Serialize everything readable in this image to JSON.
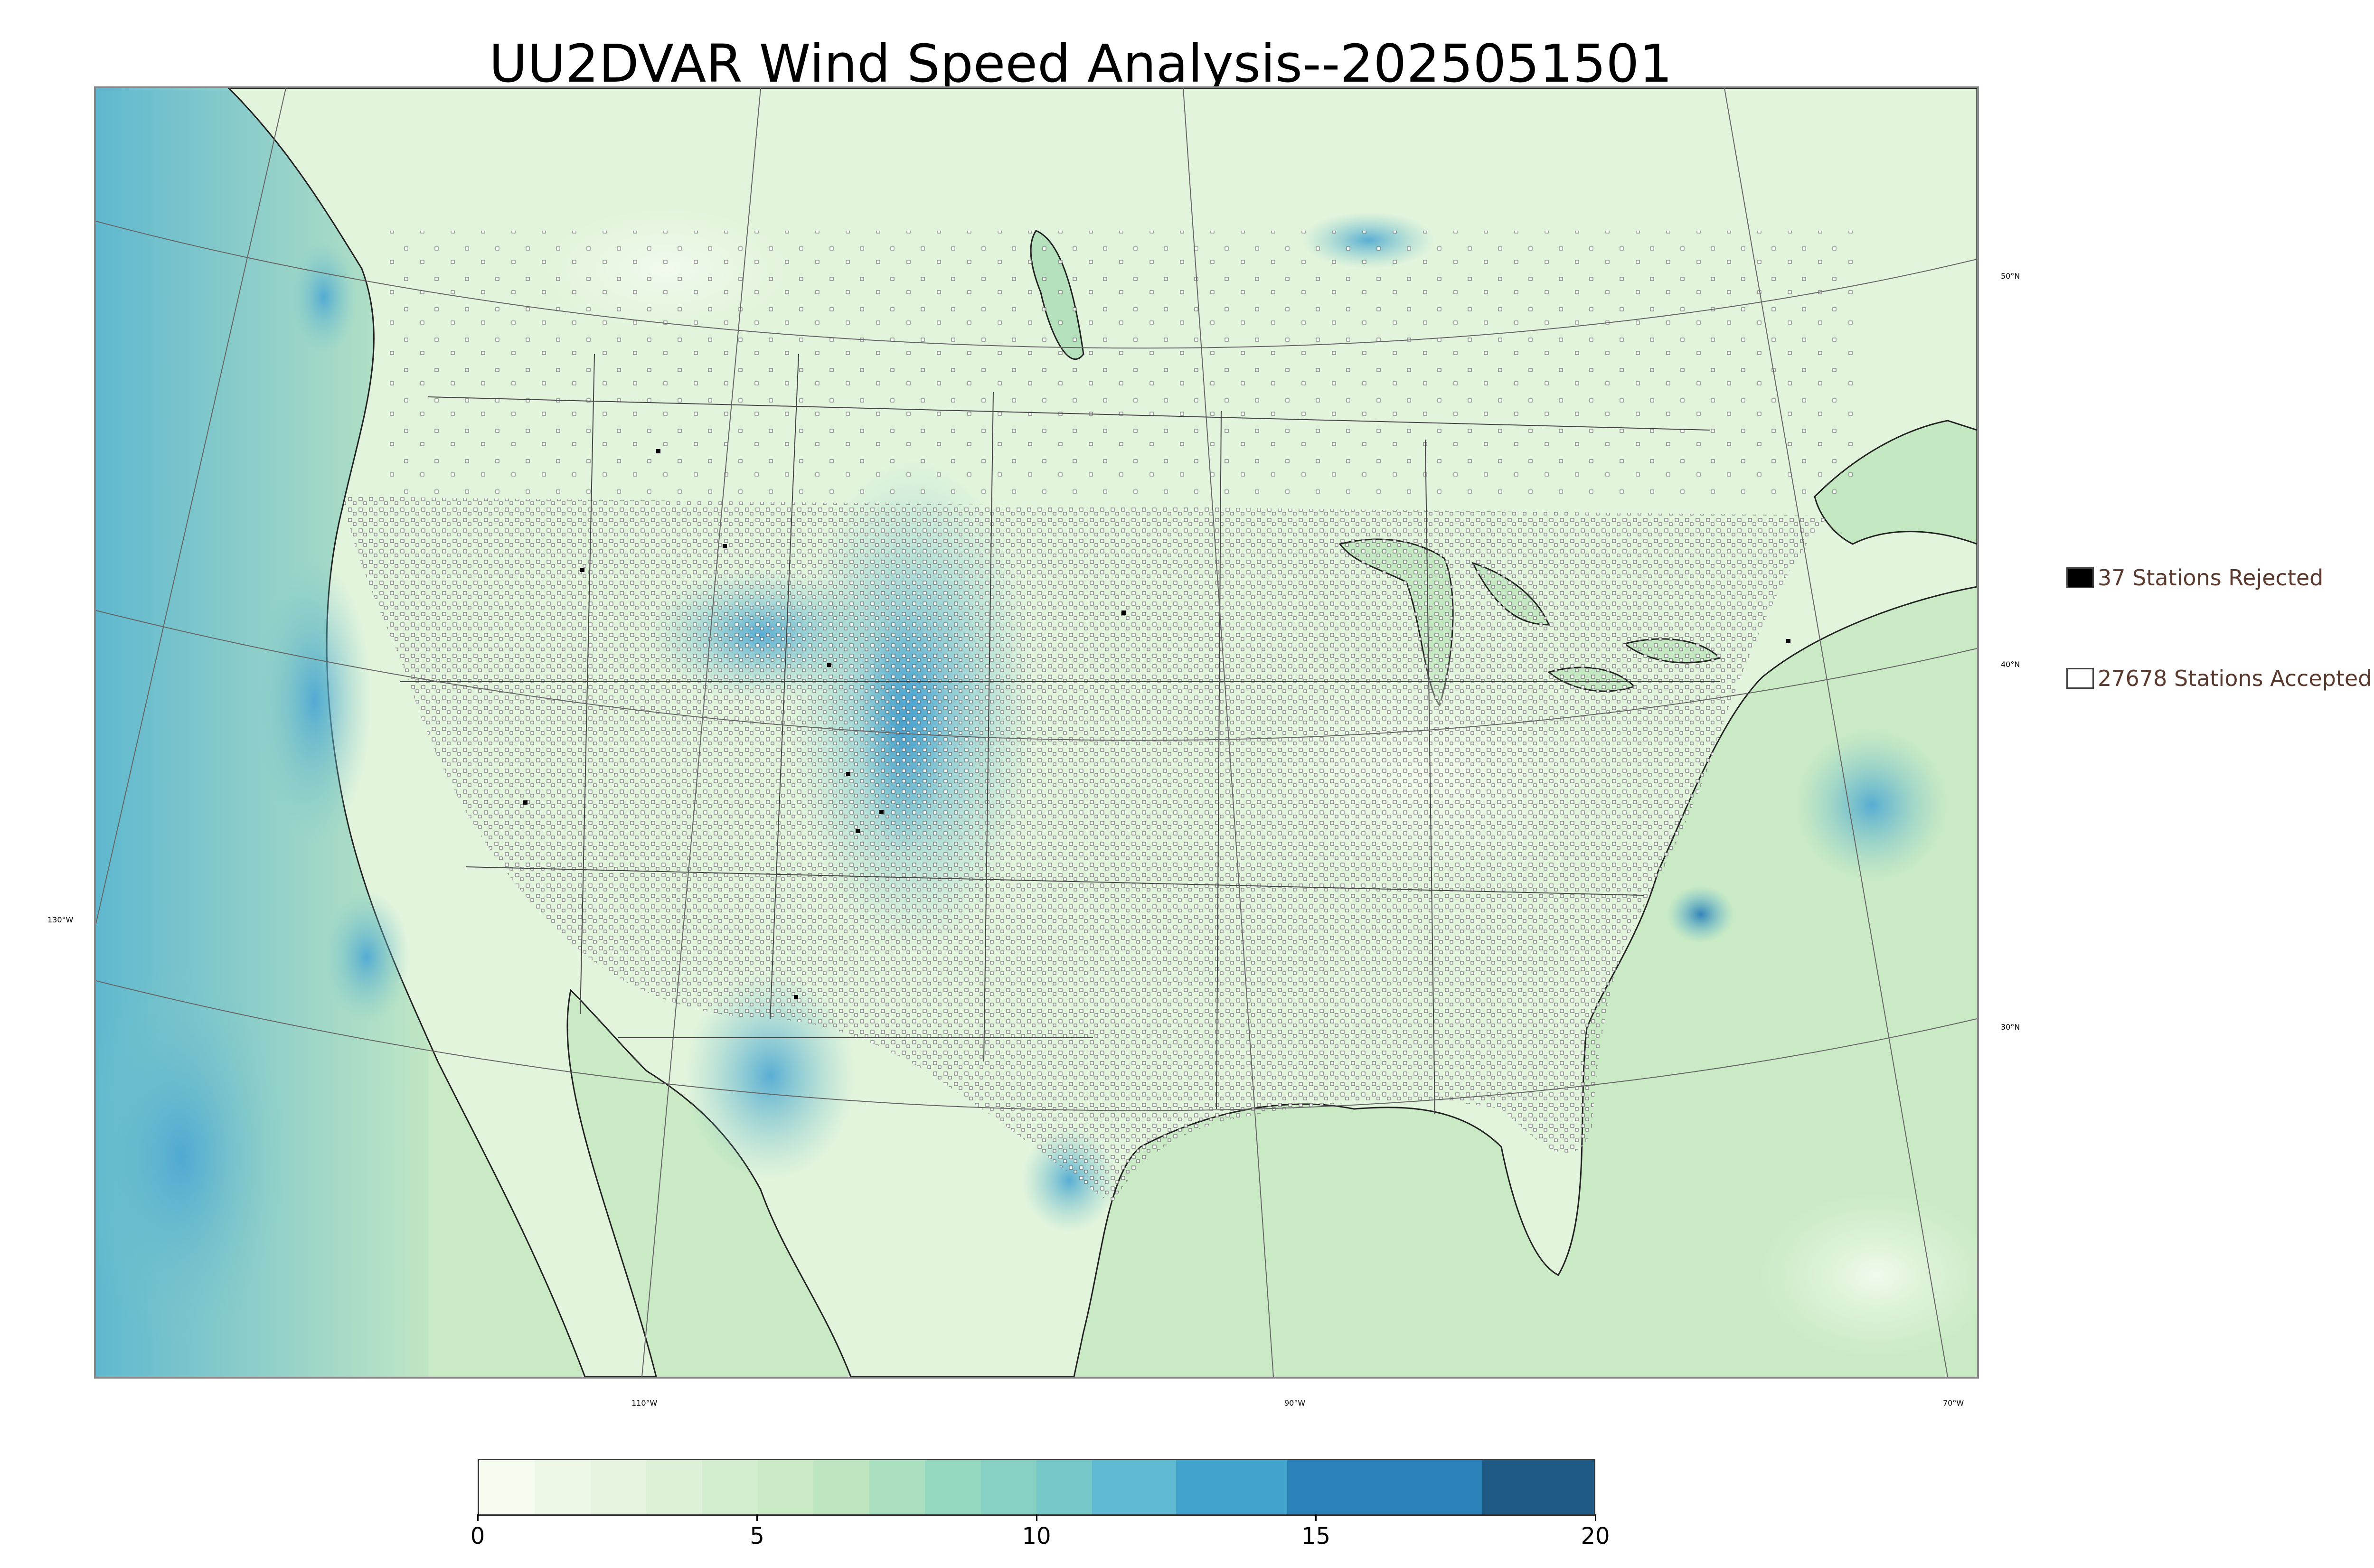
{
  "title": "UU2DVAR Wind Speed Analysis--2025051501",
  "map": {
    "parallel_labels": [
      "50°N",
      "40°N",
      "30°N"
    ],
    "meridian_labels": [
      "130°W",
      "110°W",
      "90°W",
      "70°W"
    ],
    "colors": {
      "water_base": "#c4e8c2",
      "land_base": "#e2f4dc",
      "coast_line": "#222222",
      "border_line": "#444444",
      "graticule_line": "#666666",
      "station_accepted": "#ffffff",
      "station_rejected": "#000000"
    }
  },
  "legend": {
    "rejected_label": "37 Stations Rejected",
    "accepted_label": "27678 Stations Accepted",
    "rejected_color": "#000000",
    "accepted_color": "#ffffff"
  },
  "colorbar": {
    "min": 0,
    "max": 20,
    "ticks": [
      "0",
      "5",
      "10",
      "15",
      "20"
    ],
    "bins": [
      {
        "from": 0,
        "to": 1,
        "color": "#f7fcf0"
      },
      {
        "from": 1,
        "to": 2,
        "color": "#eef8e7"
      },
      {
        "from": 2,
        "to": 3,
        "color": "#e5f5e0"
      },
      {
        "from": 3,
        "to": 4,
        "color": "#dcf1d7"
      },
      {
        "from": 4,
        "to": 5,
        "color": "#d3eece"
      },
      {
        "from": 5,
        "to": 6,
        "color": "#c9eac4"
      },
      {
        "from": 6,
        "to": 7,
        "color": "#bde5bf"
      },
      {
        "from": 7,
        "to": 8,
        "color": "#aadfbf"
      },
      {
        "from": 8,
        "to": 9,
        "color": "#96d8c0"
      },
      {
        "from": 9,
        "to": 10,
        "color": "#86d1c4"
      },
      {
        "from": 10,
        "to": 11,
        "color": "#76c8c8"
      },
      {
        "from": 11,
        "to": 12.5,
        "color": "#5fbad2"
      },
      {
        "from": 12.5,
        "to": 14.5,
        "color": "#42a3cc"
      },
      {
        "from": 14.5,
        "to": 18,
        "color": "#2a82b8"
      },
      {
        "from": 18,
        "to": 20,
        "color": "#1e5a84"
      }
    ]
  }
}
